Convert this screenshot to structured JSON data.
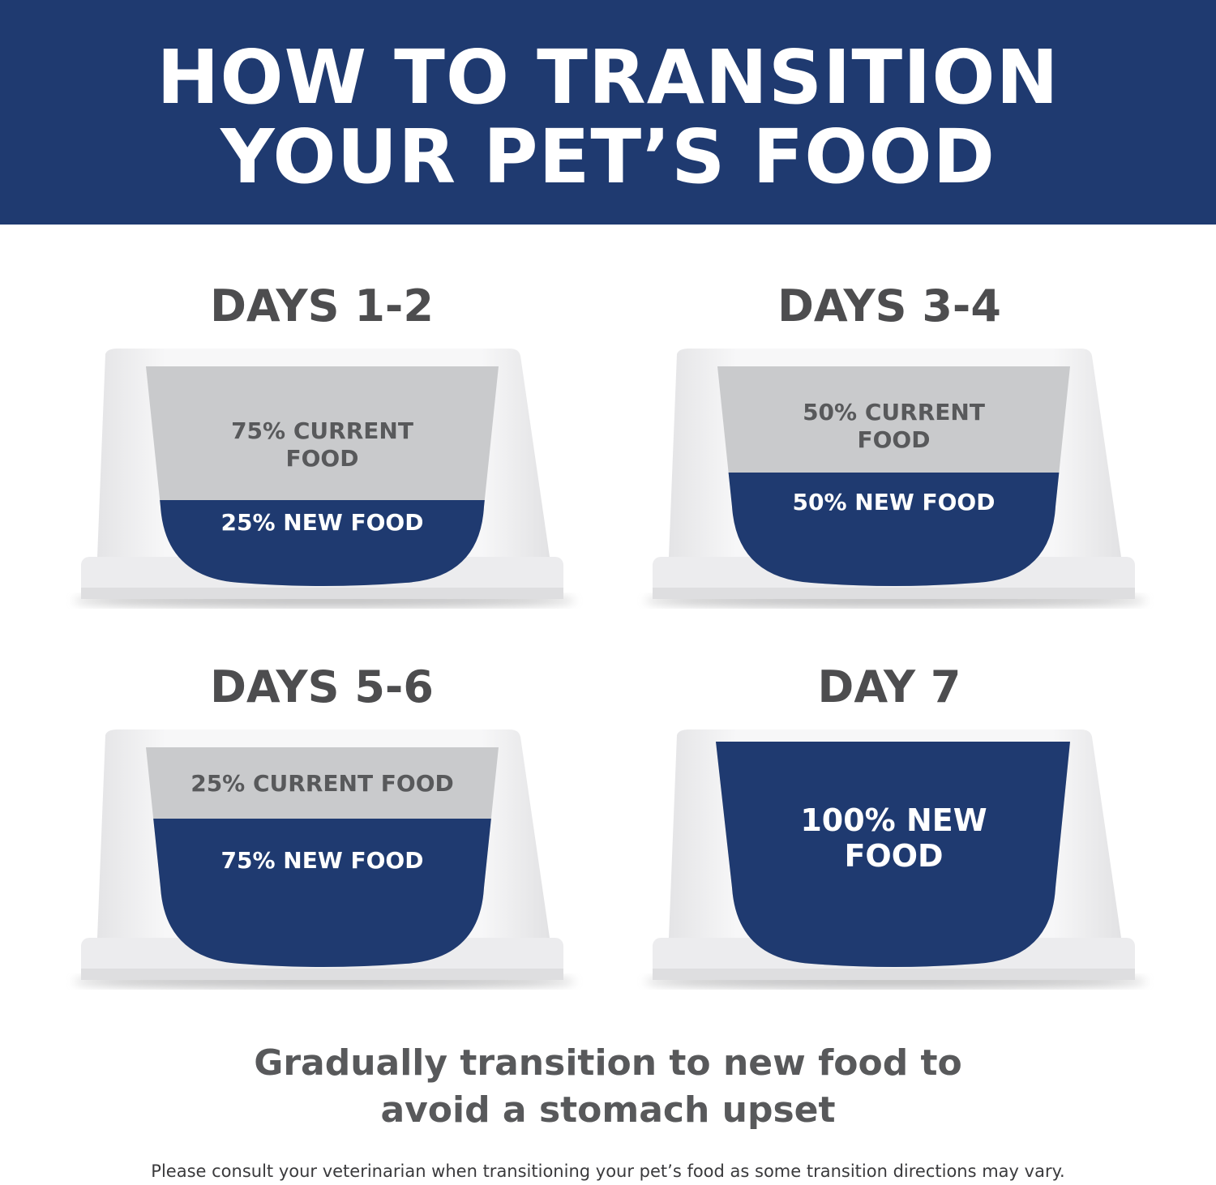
{
  "header": {
    "title_line1": "HOW TO TRANSITION",
    "title_line2": "YOUR PET’S FOOD"
  },
  "colors": {
    "brand_blue": "#1f3a70",
    "current_food_gray": "#c9cacc",
    "text_gray": "#58595b"
  },
  "steps": [
    {
      "title": "DAYS 1-2",
      "current_label": "75% CURRENT FOOD",
      "new_label": "25% NEW FOOD",
      "new_food_percent": 25
    },
    {
      "title": "DAYS 3-4",
      "current_label": "50% CURRENT FOOD",
      "new_label": "50% NEW FOOD",
      "new_food_percent": 50
    },
    {
      "title": "DAYS 5-6",
      "current_label": "25% CURRENT FOOD",
      "new_label": "75% NEW FOOD",
      "new_food_percent": 75
    },
    {
      "title": "DAY 7",
      "current_label": "",
      "new_label": "100% NEW FOOD",
      "new_food_percent": 100
    }
  ],
  "tagline": {
    "line1": "Gradually transition to new food to",
    "line2": "avoid a stomach upset"
  },
  "disclaimer": "Please consult your veterinarian when transitioning your pet’s food as some transition directions may vary."
}
